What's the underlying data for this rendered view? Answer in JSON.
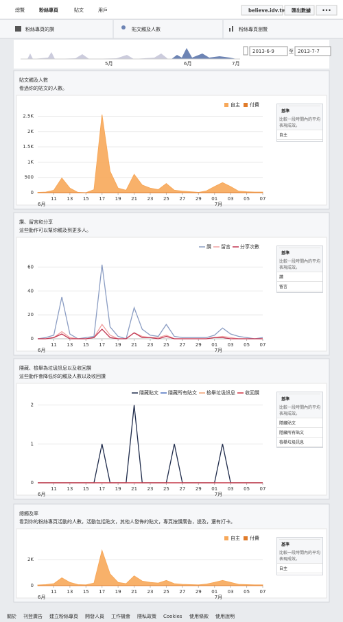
{
  "nav": {
    "items": [
      "總覽",
      "粉絲專頁",
      "貼文",
      "用戶"
    ],
    "site": "believe.idv.tw",
    "export": "匯出數據",
    "more": "•••"
  },
  "tabs": [
    "粉絲專頁的讚",
    "貼文觸及人數",
    "粉絲專頁瀏覽"
  ],
  "timeline": {
    "months": [
      "5月",
      "6月",
      "7月"
    ],
    "start": "2013-6-9",
    "to": "至",
    "end": "2013-7-7"
  },
  "charts": [
    {
      "type": "area",
      "title": "貼文觸及人數",
      "subtitle": "看過你的貼文的人數。",
      "categories": [
        null,
        null,
        "11",
        null,
        "13",
        null,
        "15",
        null,
        "17",
        null,
        "19",
        null,
        "21",
        null,
        "23",
        null,
        "25",
        null,
        "27",
        null,
        "29",
        null,
        "01",
        null,
        "03",
        null,
        "05",
        null,
        "07"
      ],
      "x_group_labels": [
        "6月",
        "7月"
      ],
      "series": [
        {
          "name": "自主",
          "color": "#f7a85a",
          "values": [
            10,
            20,
            80,
            480,
            150,
            10,
            0,
            100,
            2550,
            700,
            150,
            80,
            600,
            250,
            150,
            100,
            300,
            80,
            50,
            30,
            10,
            60,
            200,
            330,
            200,
            50,
            30,
            20,
            20
          ]
        },
        {
          "name": "付費",
          "color": "#e07b2a",
          "values": [
            0,
            0,
            0,
            0,
            0,
            0,
            0,
            0,
            0,
            0,
            0,
            0,
            0,
            0,
            0,
            0,
            0,
            0,
            0,
            0,
            0,
            0,
            0,
            0,
            0,
            0,
            0,
            0,
            0
          ]
        }
      ],
      "ylim": [
        0,
        2600
      ],
      "yticks": [
        0,
        500,
        {
          "value": 1000,
          "label": "1K"
        },
        {
          "value": 1500,
          "label": "1.5K"
        },
        {
          "value": 2000,
          "label": "2K"
        },
        {
          "value": 2500,
          "label": "2.5K"
        }
      ],
      "grid": true,
      "benchmark": {
        "title": "基準",
        "description": "比較一段時間內的平均表現成效。"
      }
    },
    {
      "type": "line",
      "title": "讚、留言和分享",
      "subtitle": "這些動作可以幫你觸及到更多人。",
      "categories": [
        null,
        null,
        "11",
        null,
        "13",
        null,
        "15",
        null,
        "17",
        null,
        "19",
        null,
        "21",
        null,
        "23",
        null,
        "25",
        null,
        "27",
        null,
        "29",
        null,
        "01",
        null,
        "03",
        null,
        "05",
        null,
        "07"
      ],
      "x_group_labels": [
        "6月",
        "7月"
      ],
      "series": [
        {
          "name": "讚",
          "color": "#8b9dc3",
          "values": [
            0,
            1,
            3,
            35,
            4,
            0,
            1,
            2,
            62,
            10,
            2,
            0,
            26,
            8,
            3,
            2,
            12,
            2,
            1,
            1,
            1,
            1,
            3,
            9,
            4,
            2,
            1,
            0,
            1
          ]
        },
        {
          "name": "留言",
          "color": "#f0a0a0",
          "values": [
            0,
            0,
            1,
            6,
            1,
            0,
            0,
            1,
            12,
            3,
            0,
            0,
            5,
            2,
            1,
            1,
            3,
            0,
            0,
            0,
            0,
            0,
            1,
            2,
            1,
            0,
            0,
            0,
            0
          ]
        },
        {
          "name": "分享次數",
          "color": "#c0334f",
          "values": [
            0,
            0,
            1,
            4,
            0,
            0,
            0,
            1,
            8,
            1,
            0,
            0,
            5,
            1,
            1,
            0,
            2,
            0,
            0,
            0,
            0,
            0,
            1,
            1,
            0,
            0,
            0,
            0,
            0
          ]
        }
      ],
      "ylim": [
        0,
        70
      ],
      "yticks": [
        0,
        20,
        40,
        60
      ],
      "grid": true,
      "benchmark": {
        "title": "基準",
        "description": "比較一段時間內的平均表現成效。"
      }
    },
    {
      "type": "line",
      "title": "隱藏、檢舉為垃圾訊息以及收回讚",
      "subtitle": "這些動作會降低你的觸及人數以及收回讚",
      "categories": [
        null,
        null,
        "11",
        null,
        "13",
        null,
        "15",
        null,
        "17",
        null,
        "19",
        null,
        "21",
        null,
        "23",
        null,
        "25",
        null,
        "27",
        null,
        "29",
        null,
        "01",
        null,
        "03",
        null,
        "05",
        null,
        "07"
      ],
      "x_group_labels": [
        "6月",
        "7月"
      ],
      "series": [
        {
          "name": "隱藏貼文",
          "color": "#1e2a4a",
          "values": [
            0,
            0,
            0,
            0,
            0,
            0,
            0,
            0,
            1,
            0,
            0,
            0,
            2,
            0,
            0,
            0,
            0,
            1,
            0,
            0,
            0,
            0,
            0,
            1,
            0,
            0,
            0,
            0,
            0
          ]
        },
        {
          "name": "隱藏所有貼文",
          "color": "#4a6fc0",
          "values": [
            0,
            0,
            0,
            0,
            0,
            0,
            0,
            0,
            0,
            0,
            0,
            0,
            0,
            0,
            0,
            0,
            0,
            0,
            0,
            0,
            0,
            0,
            0,
            0,
            0,
            0,
            0,
            0,
            0
          ]
        },
        {
          "name": "檢舉垃圾訊息",
          "color": "#f0a070",
          "values": [
            0,
            0,
            0,
            0,
            0,
            0,
            0,
            0,
            0,
            0,
            0,
            0,
            0,
            0,
            0,
            0,
            0,
            0,
            0,
            0,
            0,
            0,
            0,
            0,
            0,
            0,
            0,
            0,
            0
          ]
        },
        {
          "name": "收回讚",
          "color": "#d03040",
          "values": [
            0,
            0,
            0,
            0,
            0,
            0,
            0,
            0,
            0,
            0,
            0,
            0,
            0,
            0,
            0,
            0,
            0,
            0,
            0,
            0,
            0,
            0,
            0,
            0,
            0,
            0,
            0,
            0,
            0
          ]
        }
      ],
      "ylim": [
        0,
        2.1
      ],
      "yticks": [
        0,
        1,
        2
      ],
      "grid": true,
      "benchmark": {
        "title": "基準",
        "description": "比較一段時間內的平均表現成效。"
      }
    },
    {
      "type": "area",
      "title": "總觸及率",
      "subtitle": "看到你的粉絲專頁活動的人數，活動包括貼文，其他人發佈的貼文，專頁按讚廣告，提及，還有打卡。",
      "categories": [
        null,
        null,
        "11",
        null,
        "13",
        null,
        "15",
        null,
        "17",
        null,
        "19",
        null,
        "21",
        null,
        "23",
        null,
        "25",
        null,
        "27",
        null,
        "29",
        null,
        "01",
        null,
        "03",
        null,
        "05",
        null,
        "07"
      ],
      "x_group_labels": [
        "6月",
        "7月"
      ],
      "series": [
        {
          "name": "自主",
          "color": "#f7a85a",
          "values": [
            50,
            80,
            150,
            600,
            250,
            80,
            60,
            200,
            2700,
            900,
            250,
            150,
            750,
            350,
            250,
            200,
            400,
            150,
            100,
            80,
            60,
            120,
            250,
            400,
            250,
            100,
            80,
            60,
            60
          ]
        },
        {
          "name": "付費",
          "color": "#e07b2a",
          "values": [
            0,
            0,
            0,
            0,
            0,
            0,
            0,
            0,
            0,
            0,
            0,
            0,
            0,
            0,
            0,
            0,
            0,
            0,
            0,
            0,
            0,
            0,
            0,
            0,
            0,
            0,
            0,
            0,
            0
          ]
        }
      ],
      "ylim": [
        0,
        3000
      ],
      "yticks": [
        0,
        {
          "value": 2000,
          "label": "2K"
        }
      ],
      "grid": true,
      "benchmark": {
        "title": "基準",
        "description": "比較一段時間內的平均表現成效。"
      }
    }
  ],
  "footer": [
    "關於",
    "刊登廣告",
    "建立粉絲專頁",
    "開發人員",
    "工作機會",
    "隱私政策",
    "Cookies",
    "使用條款",
    "使用說明"
  ]
}
